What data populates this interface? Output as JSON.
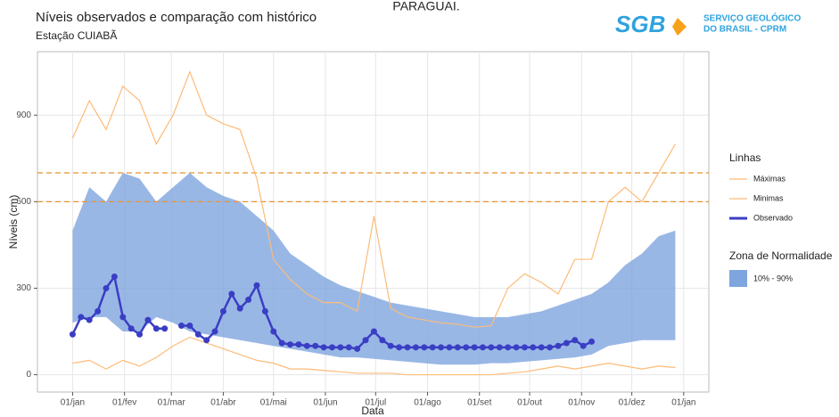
{
  "chart_data": {
    "type": "line",
    "title": "Níveis observados e comparação com histórico",
    "subtitle": "Estação CUIABÃ",
    "annotation": "PARAGUAI.",
    "logo": {
      "mark": "SGB",
      "line1": "SERVIÇO GEOLÓGICO",
      "line2": "DO BRASIL - CPRM"
    },
    "xlabel": "Data",
    "ylabel": "Níveis (cm)",
    "xlim": [
      -21,
      380
    ],
    "ylim": [
      -60,
      1120
    ],
    "xticks": [
      {
        "value": 0,
        "label": "01/jan"
      },
      {
        "value": 31,
        "label": "01/fev"
      },
      {
        "value": 59,
        "label": "01/mar"
      },
      {
        "value": 90,
        "label": "01/abr"
      },
      {
        "value": 120,
        "label": "01/mai"
      },
      {
        "value": 151,
        "label": "01/jun"
      },
      {
        "value": 181,
        "label": "01/jul"
      },
      {
        "value": 212,
        "label": "01/ago"
      },
      {
        "value": 243,
        "label": "01/set"
      },
      {
        "value": 273,
        "label": "01/out"
      },
      {
        "value": 304,
        "label": "01/nov"
      },
      {
        "value": 334,
        "label": "01/dez"
      },
      {
        "value": 365,
        "label": "01/jan"
      }
    ],
    "yticks": [
      0,
      300,
      600,
      900
    ],
    "grid": true,
    "reference_lines": [
      {
        "value": 700,
        "color": "#e8952f"
      },
      {
        "value": 600,
        "color": "#e8952f"
      }
    ],
    "legend_title": "Linhas",
    "band_legend_title": "Zona de Normalidade",
    "band": {
      "name": "10% - 90%",
      "color": "#7fa5de",
      "x": [
        0,
        10,
        20,
        30,
        40,
        50,
        60,
        70,
        80,
        90,
        100,
        110,
        120,
        130,
        140,
        150,
        160,
        170,
        180,
        190,
        200,
        210,
        220,
        230,
        240,
        250,
        260,
        270,
        280,
        290,
        300,
        310,
        320,
        330,
        340,
        350,
        360
      ],
      "high": [
        500,
        650,
        600,
        700,
        680,
        600,
        650,
        700,
        650,
        620,
        600,
        550,
        500,
        420,
        380,
        340,
        310,
        290,
        270,
        250,
        240,
        230,
        220,
        210,
        200,
        200,
        200,
        210,
        220,
        240,
        260,
        280,
        320,
        380,
        420,
        480,
        500
      ],
      "low": [
        180,
        200,
        200,
        150,
        150,
        200,
        180,
        150,
        140,
        130,
        120,
        110,
        100,
        90,
        80,
        70,
        60,
        60,
        55,
        50,
        45,
        40,
        35,
        35,
        35,
        40,
        40,
        45,
        50,
        55,
        60,
        70,
        100,
        110,
        120,
        120,
        120
      ]
    },
    "series": [
      {
        "name": "Máximas",
        "color": "#fdbb78",
        "x": [
          0,
          10,
          20,
          30,
          40,
          50,
          60,
          70,
          80,
          90,
          100,
          110,
          120,
          130,
          140,
          150,
          160,
          170,
          180,
          190,
          200,
          210,
          220,
          230,
          240,
          250,
          260,
          270,
          280,
          290,
          300,
          310,
          320,
          330,
          340,
          350,
          360
        ],
        "values": [
          820,
          950,
          850,
          1000,
          950,
          800,
          900,
          1050,
          900,
          870,
          850,
          680,
          400,
          330,
          280,
          250,
          250,
          220,
          550,
          230,
          200,
          190,
          180,
          175,
          165,
          170,
          300,
          350,
          320,
          280,
          400,
          400,
          600,
          650,
          600,
          700,
          800
        ]
      },
      {
        "name": "Minimas",
        "color": "#fdbb78",
        "x": [
          0,
          10,
          20,
          30,
          40,
          50,
          60,
          70,
          80,
          90,
          100,
          110,
          120,
          130,
          140,
          150,
          160,
          170,
          180,
          190,
          200,
          210,
          220,
          230,
          240,
          250,
          260,
          270,
          280,
          290,
          300,
          310,
          320,
          330,
          340,
          350,
          360
        ],
        "values": [
          40,
          50,
          20,
          50,
          30,
          60,
          100,
          130,
          110,
          90,
          70,
          50,
          40,
          20,
          20,
          15,
          10,
          5,
          5,
          5,
          0,
          0,
          0,
          0,
          0,
          0,
          5,
          10,
          20,
          30,
          20,
          30,
          40,
          30,
          20,
          30,
          25
        ]
      },
      {
        "name": "Observado",
        "color": "#3a3ec4",
        "x": [
          0,
          5,
          10,
          15,
          20,
          25,
          30,
          35,
          40,
          45,
          50,
          55,
          60,
          65,
          70,
          75,
          80,
          85,
          90,
          95,
          100,
          105,
          110,
          115,
          120,
          125,
          130,
          135,
          140,
          145,
          150,
          155,
          160,
          165,
          170,
          175,
          180,
          185,
          190,
          195,
          200,
          205,
          210,
          215,
          220,
          225,
          230,
          235,
          240,
          245,
          250,
          255,
          260,
          265,
          270,
          275,
          280,
          285,
          290,
          295,
          300,
          305,
          310
        ],
        "values": [
          140,
          200,
          190,
          220,
          300,
          340,
          200,
          160,
          140,
          190,
          160,
          160,
          null,
          170,
          170,
          140,
          120,
          150,
          220,
          280,
          230,
          260,
          310,
          220,
          150,
          110,
          105,
          105,
          100,
          100,
          95,
          95,
          95,
          95,
          90,
          120,
          150,
          120,
          100,
          95,
          95,
          95,
          95,
          95,
          95,
          95,
          95,
          95,
          95,
          95,
          95,
          95,
          95,
          95,
          95,
          95,
          95,
          95,
          100,
          110,
          120,
          100,
          115
        ]
      }
    ]
  }
}
